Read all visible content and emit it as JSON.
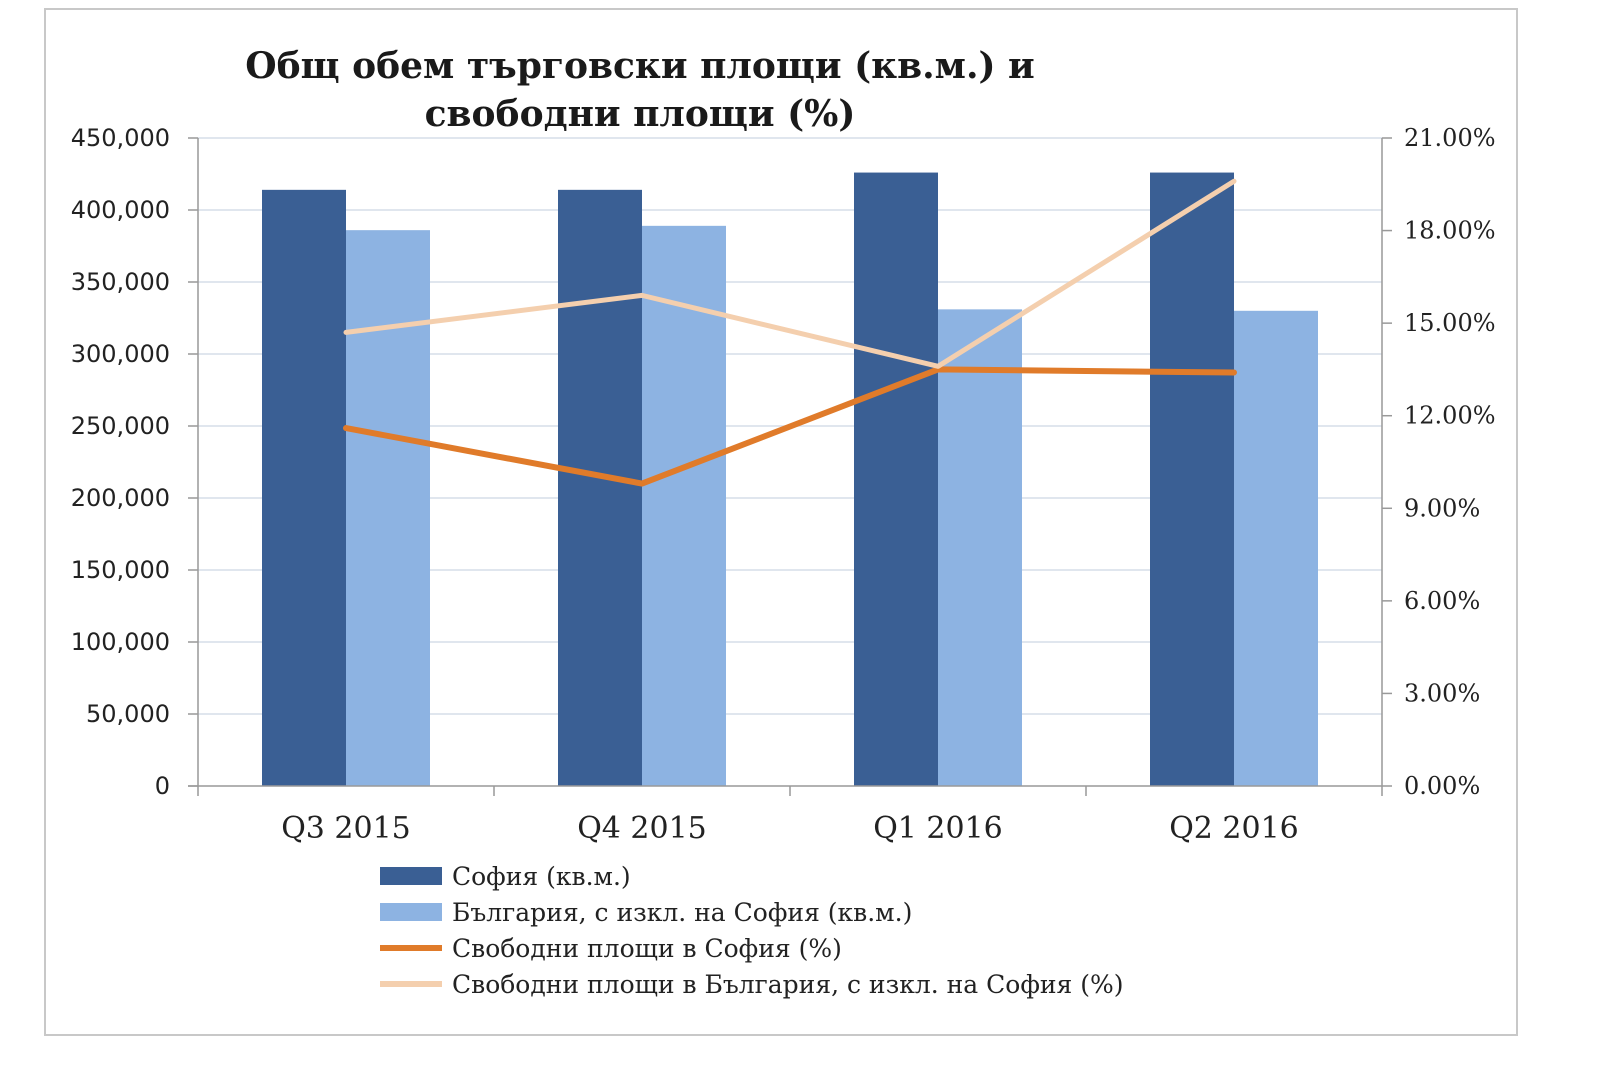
{
  "chart_data": {
    "type": "bar",
    "title": "Общ обем търговски площи (кв.м.) и свободни площи (%)",
    "categories": [
      "Q3 2015",
      "Q4 2015",
      "Q1 2016",
      "Q2 2016"
    ],
    "y_left": {
      "ylim": [
        0,
        450000
      ],
      "ticks": [
        "0",
        "50,000",
        "100,000",
        "150,000",
        "200,000",
        "250,000",
        "300,000",
        "350,000",
        "400,000",
        "450,000"
      ]
    },
    "y_right": {
      "ylim": [
        0,
        21
      ],
      "ticks": [
        "0.00%",
        "3.00%",
        "6.00%",
        "9.00%",
        "12.00%",
        "15.00%",
        "18.00%",
        "21.00%"
      ]
    },
    "series": [
      {
        "name": "София (кв.м.)",
        "kind": "bar",
        "axis": "left",
        "color": "#3a5f94",
        "values": [
          414000,
          414000,
          426000,
          426000
        ]
      },
      {
        "name": "България, с изкл. на София (кв.м.)",
        "kind": "bar",
        "axis": "left",
        "color": "#8db3e2",
        "values": [
          386000,
          389000,
          331000,
          330000
        ]
      },
      {
        "name": "Свободни площи в София (%)",
        "kind": "line",
        "axis": "right",
        "color": "#e07b2a",
        "values": [
          11.6,
          9.8,
          13.5,
          13.4
        ]
      },
      {
        "name": "Свободни площи в България, с изкл. на София (%)",
        "kind": "line",
        "axis": "right",
        "color": "#f4cfae",
        "values": [
          14.7,
          15.9,
          13.6,
          19.6
        ]
      }
    ],
    "grid": true,
    "legend_position": "bottom"
  }
}
